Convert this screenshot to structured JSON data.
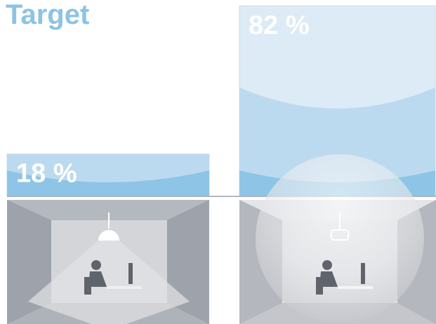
{
  "chart_data": {
    "type": "bar",
    "title": "Target",
    "values": [
      18,
      82
    ],
    "value_labels": [
      "18 %",
      "82 %"
    ],
    "color": "#dcebf6",
    "ylim": [
      0,
      100
    ]
  }
}
